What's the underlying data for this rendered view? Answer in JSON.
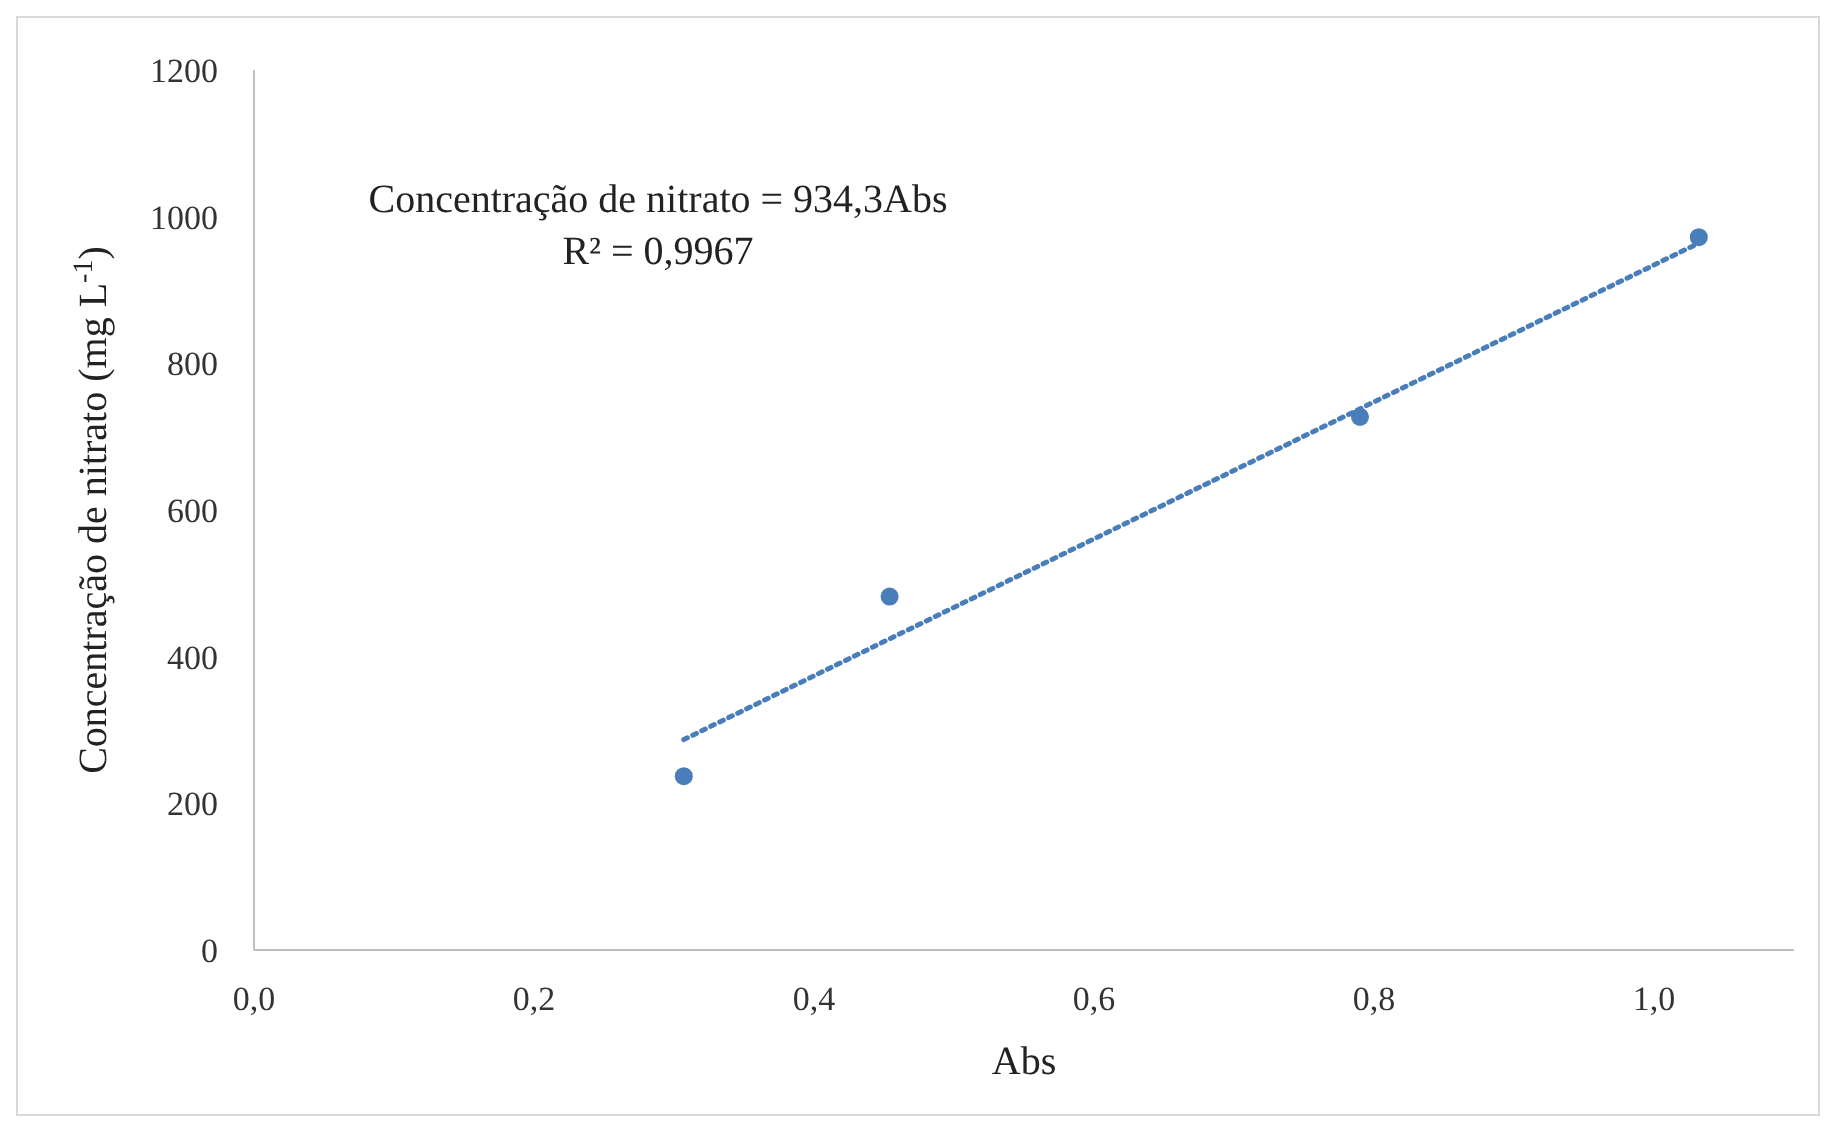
{
  "chart_data": {
    "type": "scatter",
    "xlabel": "Abs",
    "ylabel": "Concentração de nitrato (mg L$^{-1}$)",
    "annotations": [
      "Concentração de nitrato = 934,3Abs",
      "R² = 0,9967"
    ],
    "series": [
      {
        "color": "#4a7ebb",
        "x": [
          0.307,
          0.454,
          0.79,
          1.032
        ],
        "values": [
          237,
          482,
          727,
          972
        ],
        "marker": "circle"
      },
      {
        "type": "line",
        "color": "#4a7ebb",
        "x": [
          0.307,
          1.032
        ],
        "values": [
          287,
          964
        ],
        "line_style": "dotted",
        "marker": "none"
      }
    ],
    "xlim": [
      0,
      1.1
    ],
    "xticks": [
      {
        "value": 0,
        "label": "0,0"
      },
      {
        "value": 0.2,
        "label": "0,2"
      },
      {
        "value": 0.4,
        "label": "0,4"
      },
      {
        "value": 0.6,
        "label": "0,6"
      },
      {
        "value": 0.8,
        "label": "0,8"
      },
      {
        "value": 1,
        "label": "1,0"
      }
    ],
    "ylim": [
      0,
      1200
    ],
    "yticks": [
      0,
      200,
      400,
      600,
      800,
      1000,
      1200
    ],
    "grid": false
  }
}
